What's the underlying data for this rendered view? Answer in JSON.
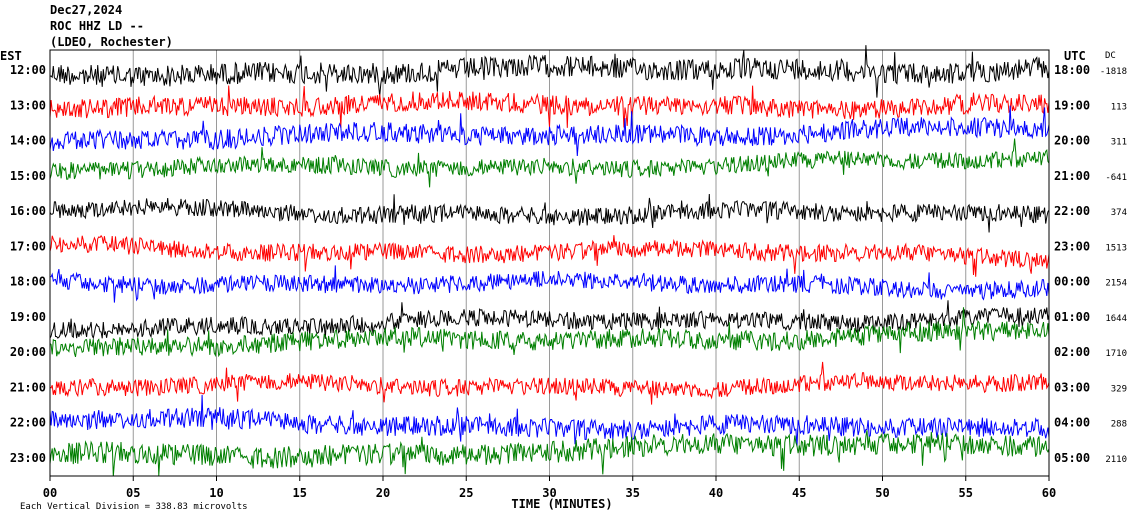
{
  "header": {
    "date": "Dec27,2024",
    "station": "ROC HHZ LD --",
    "network": "(LDEO, Rochester)"
  },
  "chart_data": {
    "type": "line",
    "title": "ROC HHZ LD --",
    "xlabel": "TIME (MINUTES)",
    "xlim": [
      0,
      60
    ],
    "xticks": [
      "00",
      "05",
      "10",
      "15",
      "20",
      "25",
      "30",
      "35",
      "40",
      "45",
      "50",
      "55",
      "60"
    ],
    "left_axis_label": "EST",
    "right_axis_label": "UTC",
    "dc_label": "DC",
    "footer": "Each Vertical Division = 338.83 microvolts",
    "colors": [
      "#000000",
      "#ff0000",
      "#0000ff",
      "#007f00"
    ],
    "rows": [
      {
        "est": "12:00",
        "utc": "18:00",
        "dc": "-1818",
        "color": "#000000",
        "amp": 1.0,
        "drift": [
          0.3,
          -0.2
        ]
      },
      {
        "est": "13:00",
        "utc": "19:00",
        "dc": "113",
        "color": "#ff0000",
        "amp": 0.9,
        "drift": [
          0.0,
          0.0
        ]
      },
      {
        "est": "14:00",
        "utc": "20:00",
        "dc": "311",
        "color": "#0000ff",
        "amp": 0.9,
        "drift": [
          0.0,
          -1.2
        ]
      },
      {
        "est": "15:00",
        "utc": "21:00",
        "dc": "-641",
        "color": "#007f00",
        "amp": 0.8,
        "drift": [
          -0.5,
          -1.5
        ]
      },
      {
        "est": "16:00",
        "utc": "22:00",
        "dc": "374",
        "color": "#000000",
        "amp": 0.8,
        "drift": [
          0.0,
          0.4
        ]
      },
      {
        "est": "17:00",
        "utc": "23:00",
        "dc": "1513",
        "color": "#ff0000",
        "amp": 0.8,
        "drift": [
          0.2,
          0.9
        ]
      },
      {
        "est": "18:00",
        "utc": "00:00",
        "dc": "2154",
        "color": "#0000ff",
        "amp": 0.8,
        "drift": [
          0.0,
          0.5
        ]
      },
      {
        "est": "19:00",
        "utc": "01:00",
        "dc": "1644",
        "color": "#000000",
        "amp": 0.8,
        "drift": [
          1.0,
          0.0
        ]
      },
      {
        "est": "20:00",
        "utc": "02:00",
        "dc": "1710",
        "color": "#007f00",
        "amp": 0.9,
        "drift": [
          -0.5,
          -2.0
        ]
      },
      {
        "est": "21:00",
        "utc": "03:00",
        "dc": "329",
        "color": "#ff0000",
        "amp": 0.8,
        "drift": [
          0.0,
          -0.3
        ]
      },
      {
        "est": "22:00",
        "utc": "04:00",
        "dc": "288",
        "color": "#0000ff",
        "amp": 0.9,
        "drift": [
          -0.2,
          0.8
        ]
      },
      {
        "est": "23:00",
        "utc": "05:00",
        "dc": "2110",
        "color": "#007f00",
        "amp": 1.0,
        "drift": [
          0.0,
          -1.5
        ]
      }
    ]
  }
}
